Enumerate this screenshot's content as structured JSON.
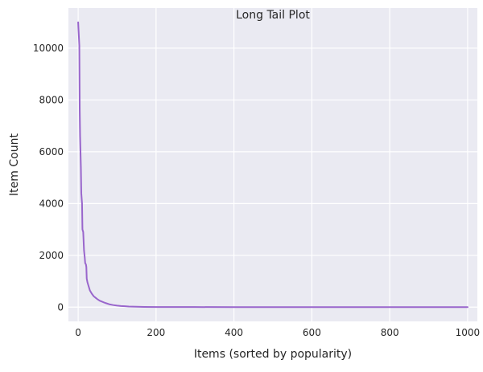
{
  "chart_data": {
    "type": "line",
    "title": "Long Tail Plot",
    "xlabel": "Items (sorted by popularity)",
    "ylabel": "Item Count",
    "xlim": [
      -25,
      1025
    ],
    "ylim": [
      -550,
      11550
    ],
    "xticks": [
      0,
      200,
      400,
      600,
      800,
      1000
    ],
    "yticks": [
      0,
      2000,
      4000,
      6000,
      8000,
      10000
    ],
    "grid": true,
    "background": "#eaeaf2",
    "grid_color": "#ffffff",
    "line_color": "#9966cc",
    "series": [
      {
        "x": [
          0,
          3,
          4,
          5,
          7,
          8,
          10,
          11,
          13,
          15,
          17,
          18,
          20,
          21,
          22,
          24,
          26,
          28,
          30,
          35,
          40,
          45,
          50,
          55,
          60,
          65,
          70,
          80,
          90,
          100,
          110,
          120,
          130,
          150,
          170,
          200,
          250,
          300,
          400,
          500,
          600,
          700,
          800,
          900,
          1000
        ],
        "y": [
          11000,
          10100,
          7600,
          6600,
          5400,
          4400,
          4000,
          3000,
          2900,
          2200,
          1900,
          1700,
          1650,
          1550,
          1100,
          950,
          850,
          750,
          650,
          520,
          420,
          360,
          300,
          250,
          220,
          190,
          160,
          110,
          80,
          60,
          45,
          35,
          25,
          15,
          10,
          6,
          4,
          3,
          2,
          2,
          1,
          1,
          1,
          1,
          1
        ]
      }
    ]
  }
}
